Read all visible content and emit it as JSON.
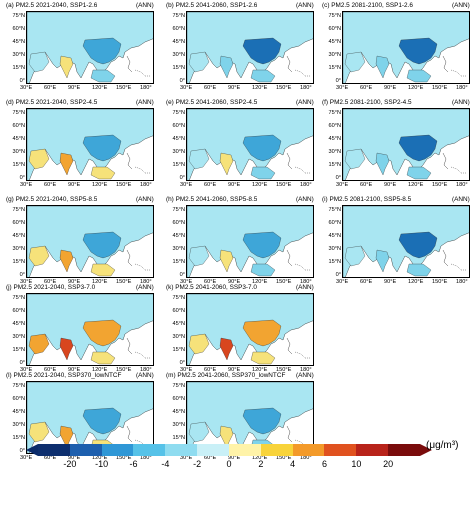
{
  "panels": [
    {
      "title": "(a) PM2.5 2021-2040, SSP1-2.6",
      "tag": "(ANN)",
      "level": 1
    },
    {
      "title": "(b) PM2.5 2041-2060, SSP1-2.6",
      "tag": "(ANN)",
      "level": 0
    },
    {
      "title": "(c) PM2.5 2081-2100, SSP1-2.6",
      "tag": "(ANN)",
      "level": 0
    },
    {
      "title": "(d) PM2.5 2021-2040, SSP2-4.5",
      "tag": "(ANN)",
      "level": 2
    },
    {
      "title": "(e) PM2.5 2041-2060, SSP2-4.5",
      "tag": "(ANN)",
      "level": 1
    },
    {
      "title": "(f) PM2.5 2081-2100, SSP2-4.5",
      "tag": "(ANN)",
      "level": 0
    },
    {
      "title": "(g) PM2.5 2021-2040, SSP5-8.5",
      "tag": "(ANN)",
      "level": 2
    },
    {
      "title": "(h) PM2.5 2041-2060, SSP5-8.5",
      "tag": "(ANN)",
      "level": 1
    },
    {
      "title": "(i) PM2.5 2081-2100, SSP5-8.5",
      "tag": "(ANN)",
      "level": 0
    },
    {
      "title": "(j) PM2.5 2021-2040, SSP3-7.0",
      "tag": "(ANN)",
      "level": 4
    },
    {
      "title": "(k) PM2.5 2041-2060, SSP3-7.0",
      "tag": "(ANN)",
      "level": 3
    },
    {
      "title": "(l) PM2.5 2021-2040, SSP370_lowNTCF",
      "tag": "(ANN)",
      "level": 2
    },
    {
      "title": "(m) PM2.5 2041-2060, SSP370_lowNTCF",
      "tag": "(ANN)",
      "level": 1
    }
  ],
  "lat_labels": [
    "75°N",
    "60°N",
    "45°N",
    "30°N",
    "15°N",
    "0°"
  ],
  "lon_labels": [
    "30°E",
    "60°E",
    "90°E",
    "120°E",
    "150°E",
    "180°"
  ],
  "colorbar": {
    "ticks": [
      "-20",
      "-10",
      "-6",
      "-4",
      "-2",
      "0",
      "2",
      "4",
      "6",
      "10",
      "20"
    ],
    "unit": "(μg/m³)",
    "colors": [
      "#0d2e6e",
      "#1d5fae",
      "#2f97d6",
      "#56c2e8",
      "#8fdcf0",
      "#c9f0f7",
      "#fff3a8",
      "#f8d33a",
      "#f39a2a",
      "#e0521f",
      "#b8231a",
      "#7a0c0c"
    ]
  },
  "map_colors": {
    "ocean": "#ffffff",
    "land_base": "#a9e6f2",
    "cool": "#7fd3ea",
    "blue": "#3ea6d8",
    "deep": "#1b6fb5",
    "yellow": "#f6e27a",
    "orange": "#f2a431",
    "red": "#d8461f"
  }
}
